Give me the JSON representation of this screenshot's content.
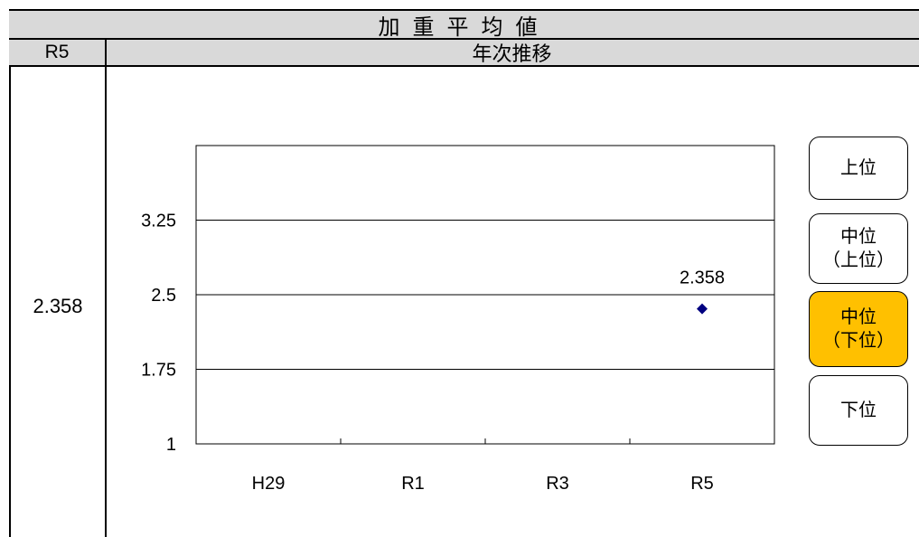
{
  "header": {
    "title": "加重平均値",
    "year_label": "R5",
    "trend_label": "年次推移"
  },
  "current_value": "2.358",
  "chart_data": {
    "type": "scatter",
    "categories": [
      "H29",
      "R1",
      "R3",
      "R5"
    ],
    "y_ticks": [
      "1",
      "1.75",
      "2.5",
      "3.25"
    ],
    "ylim": [
      1,
      4
    ],
    "grid": true,
    "marker_color": "#000080",
    "series": [
      {
        "values": [
          null,
          null,
          null,
          2.358
        ],
        "labels": [
          null,
          null,
          null,
          "2.358"
        ]
      }
    ]
  },
  "levels": {
    "upper": "上位",
    "mid_upper": {
      "line1": "中位",
      "line2": "（上位）"
    },
    "mid_lower": {
      "line1": "中位",
      "line2": "（下位）"
    },
    "lower": "下位",
    "active_color": "#ffc000"
  }
}
